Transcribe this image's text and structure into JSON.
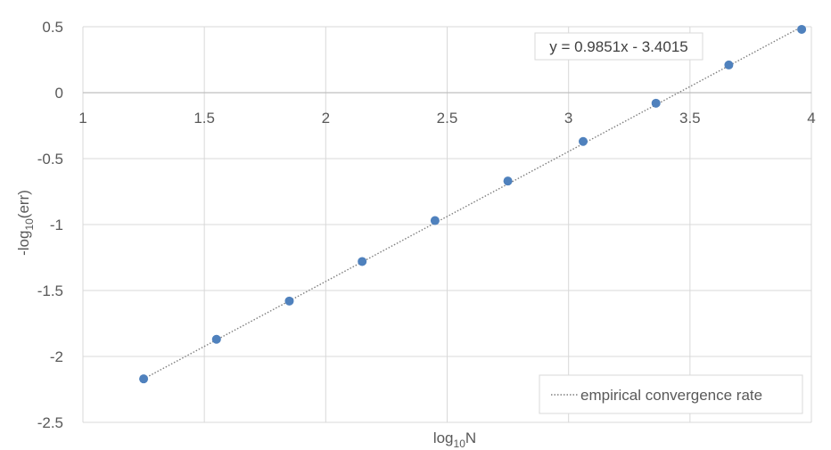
{
  "chart_data": {
    "type": "scatter",
    "title": "",
    "xlabel": "log10N",
    "xlabel_main": "log",
    "xlabel_sub": "10",
    "xlabel_tail": "N",
    "ylabel_main": "-log",
    "ylabel_sub": "10",
    "ylabel_tail": "(err)",
    "xlim": [
      1,
      4
    ],
    "ylim": [
      -2.5,
      0.5
    ],
    "x_ticks": [
      1,
      1.5,
      2,
      2.5,
      3,
      3.5,
      4
    ],
    "x_tick_labels": [
      "1",
      "1.5",
      "2",
      "2.5",
      "3",
      "3.5",
      "4"
    ],
    "y_ticks": [
      -2.5,
      -2,
      -1.5,
      -1,
      -0.5,
      0,
      0.5
    ],
    "y_tick_labels": [
      "-2.5",
      "-2",
      "-1.5",
      "-1",
      "-0.5",
      "0",
      "0.5"
    ],
    "grid": true,
    "x_tick_labels_position": "along y=0 axis",
    "series": [
      {
        "x": [
          1.25,
          1.55,
          1.85,
          2.15,
          2.45,
          2.75,
          3.06,
          3.36,
          3.66,
          3.96
        ],
        "y": [
          -2.17,
          -1.87,
          -1.58,
          -1.28,
          -0.97,
          -0.67,
          -0.37,
          -0.08,
          0.21,
          0.48
        ],
        "color": "#4f81bd"
      }
    ],
    "trendline": {
      "name": "empirical convergence rate",
      "slope": 0.9851,
      "intercept": -3.4015,
      "x_range": [
        1.25,
        3.96
      ],
      "color": "#7f7f7f",
      "style": "dotted",
      "equation_label": "y = 0.9851x - 3.4015"
    },
    "legend_position": "bottom-right"
  }
}
